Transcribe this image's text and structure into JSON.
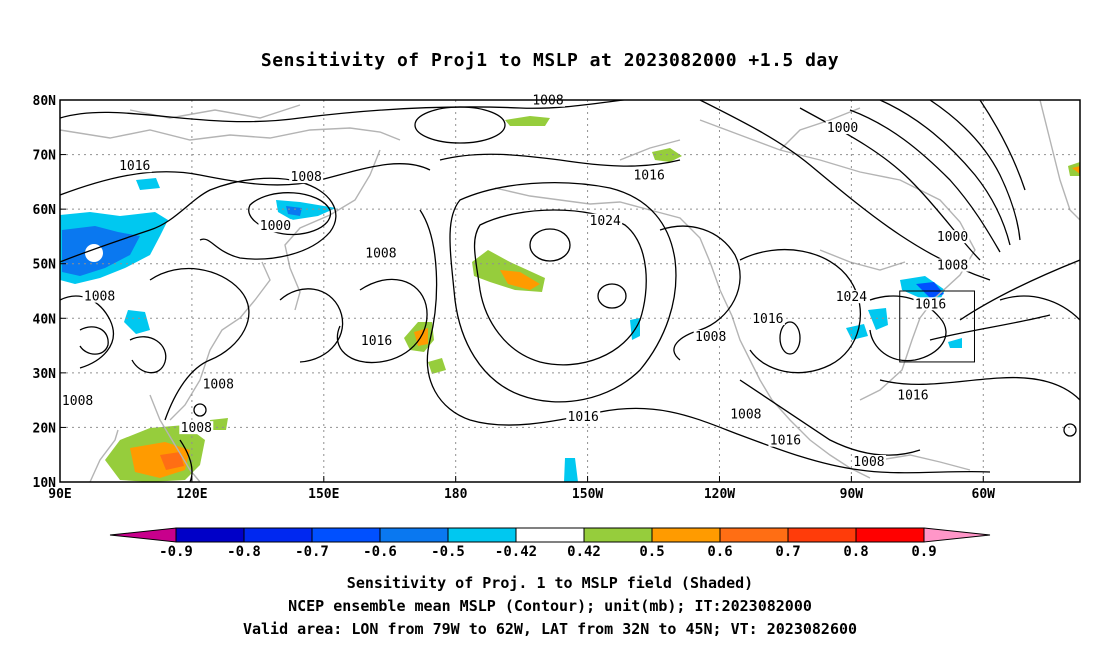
{
  "title": "Sensitivity of Proj1 to MSLP at 2023082000 +1.5 day",
  "map": {
    "lon_min": 90,
    "lon_max": 322,
    "lat_min": 10,
    "lat_max": 80,
    "lon_ticks": [
      {
        "lon": 90,
        "label": "90E"
      },
      {
        "lon": 120,
        "label": "120E"
      },
      {
        "lon": 150,
        "label": "150E"
      },
      {
        "lon": 180,
        "label": "180"
      },
      {
        "lon": 210,
        "label": "150W"
      },
      {
        "lon": 240,
        "label": "120W"
      },
      {
        "lon": 270,
        "label": "90W"
      },
      {
        "lon": 300,
        "label": "60W"
      }
    ],
    "lat_ticks": [
      {
        "lat": 80,
        "label": "80N"
      },
      {
        "lat": 70,
        "label": "70N"
      },
      {
        "lat": 60,
        "label": "60N"
      },
      {
        "lat": 50,
        "label": "50N"
      },
      {
        "lat": 40,
        "label": "40N"
      },
      {
        "lat": 30,
        "label": "30N"
      },
      {
        "lat": 20,
        "label": "20N"
      },
      {
        "lat": 10,
        "label": "10N"
      }
    ],
    "valid_box": {
      "lon_w": 281,
      "lon_e": 298,
      "lat_s": 32,
      "lat_n": 45
    },
    "contour_labels": [
      {
        "text": "1008",
        "lon": 201,
        "lat": 79.5
      },
      {
        "text": "1000",
        "lon": 268,
        "lat": 74.5
      },
      {
        "text": "1016",
        "lon": 107,
        "lat": 67.5
      },
      {
        "text": "1008",
        "lon": 146,
        "lat": 65.5
      },
      {
        "text": "1016",
        "lon": 224,
        "lat": 65.8
      },
      {
        "text": "1000",
        "lon": 139,
        "lat": 56.5
      },
      {
        "text": "1024",
        "lon": 214,
        "lat": 57.5
      },
      {
        "text": "1000",
        "lon": 293,
        "lat": 54.5
      },
      {
        "text": "1008",
        "lon": 163,
        "lat": 51.5
      },
      {
        "text": "1008",
        "lon": 293,
        "lat": 49.3
      },
      {
        "text": "1008",
        "lon": 99,
        "lat": 43.6
      },
      {
        "text": "1024",
        "lon": 270,
        "lat": 43.5
      },
      {
        "text": "1016",
        "lon": 288,
        "lat": 42.2
      },
      {
        "text": "1016",
        "lon": 251,
        "lat": 39.5
      },
      {
        "text": "1016",
        "lon": 162,
        "lat": 35.5
      },
      {
        "text": "1008",
        "lon": 238,
        "lat": 36.2
      },
      {
        "text": "1008",
        "lon": 126,
        "lat": 27.5
      },
      {
        "text": "1008",
        "lon": 94,
        "lat": 24.5
      },
      {
        "text": "1016",
        "lon": 284,
        "lat": 25.5
      },
      {
        "text": "1016",
        "lon": 209,
        "lat": 21.5
      },
      {
        "text": "1008",
        "lon": 121,
        "lat": 19.5
      },
      {
        "text": "1008",
        "lon": 246,
        "lat": 22.0
      },
      {
        "text": "1016",
        "lon": 255,
        "lat": 17.2
      },
      {
        "text": "1008",
        "lon": 274,
        "lat": 13.3
      }
    ]
  },
  "colorbar": {
    "colors": [
      "#c8008c",
      "#0000c8",
      "#0028f0",
      "#0050ff",
      "#0a78f0",
      "#00c8f0",
      "#ffffff",
      "#96cd3c",
      "#ff9b00",
      "#ff6e14",
      "#ff3c0a",
      "#ff0000",
      "#ff96c8"
    ],
    "labels": [
      "-0.9",
      "-0.8",
      "-0.7",
      "-0.6",
      "-0.5",
      "-0.42",
      "0.42",
      "0.5",
      "0.6",
      "0.7",
      "0.8",
      "0.9"
    ]
  },
  "captions": [
    "Sensitivity of Proj. 1 to MSLP field (Shaded)",
    "NCEP ensemble mean MSLP (Contour); unit(mb); IT:2023082000",
    "Valid area: LON from 79W to 62W, LAT from 32N to 45N; VT: 2023082600"
  ]
}
